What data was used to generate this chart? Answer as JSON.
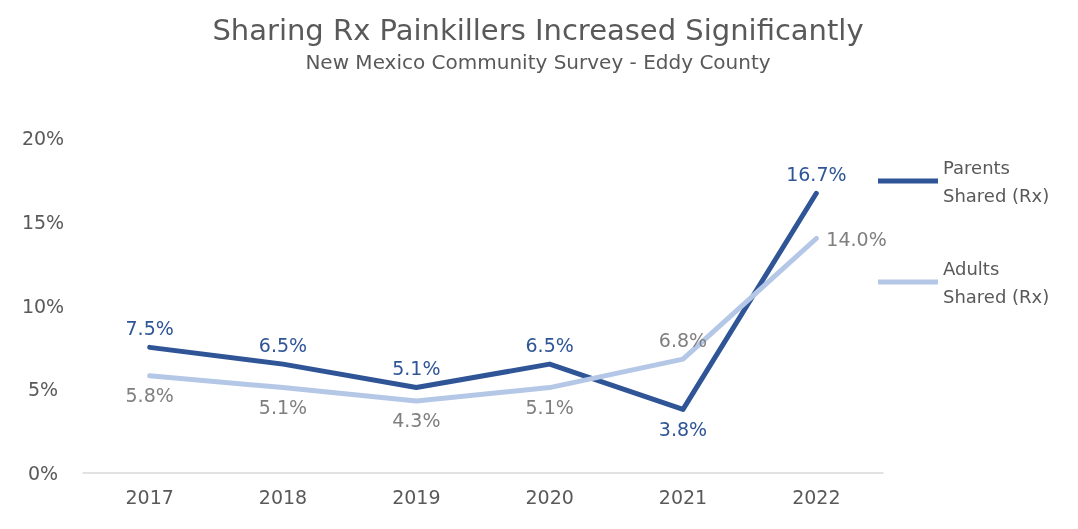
{
  "chart_data": {
    "type": "line",
    "title": "Sharing Rx Painkillers Increased Significantly",
    "subtitle": "New Mexico Community Survey - Eddy County",
    "categories": [
      "2017",
      "2018",
      "2019",
      "2020",
      "2021",
      "2022"
    ],
    "series": [
      {
        "name": "Parents Shared (Rx)",
        "color": "#2f5597",
        "values": [
          7.5,
          6.5,
          5.1,
          6.5,
          3.8,
          16.7
        ],
        "value_labels": [
          "7.5%",
          "6.5%",
          "5.1%",
          "6.5%",
          "3.8%",
          "16.7%"
        ]
      },
      {
        "name": "Adults Shared (Rx)",
        "color": "#b4c7e7",
        "values": [
          5.8,
          5.1,
          4.3,
          5.1,
          6.8,
          14.0
        ],
        "value_labels": [
          "5.8%",
          "5.1%",
          "4.3%",
          "5.1%",
          "6.8%",
          "14.0%"
        ]
      }
    ],
    "ylim": [
      0,
      20
    ],
    "yticks": [
      {
        "value": 0,
        "label": "0%"
      },
      {
        "value": 5,
        "label": "5%"
      },
      {
        "value": 10,
        "label": "10%"
      },
      {
        "value": 15,
        "label": "15%"
      },
      {
        "value": 20,
        "label": "20%"
      }
    ],
    "grid": false,
    "legend": "right",
    "marker": "none",
    "line_style": "solid"
  }
}
